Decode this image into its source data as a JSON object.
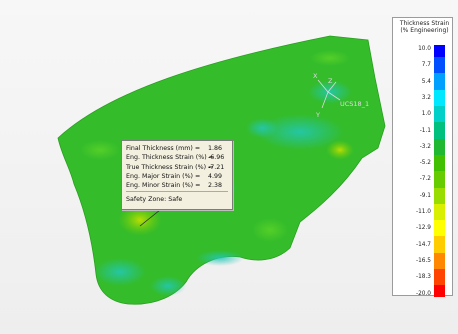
{
  "info_box": {
    "rows": [
      {
        "label": "Final Thickness (mm) =",
        "value": "1.86"
      },
      {
        "label": "Eng. Thickness Strain (%) =",
        "value": "-6.96"
      },
      {
        "label": "True Thickness Strain (%) =",
        "value": "-7.21"
      },
      {
        "label": "Eng. Major Strain (%) =",
        "value": "4.99"
      },
      {
        "label": "Eng. Minor Strain (%) =",
        "value": "2.38"
      }
    ],
    "safety_zone": "Safety Zone:  Safe"
  },
  "coordinate_system": {
    "name": "UCS18_1",
    "x_axis": "X",
    "y_axis": "Y",
    "z_axis": "Z"
  },
  "legend": {
    "title_line1": "Thickness Strain",
    "title_line2": "(% Engineering)",
    "labels": [
      "10.0",
      "7.7",
      "5.4",
      "3.2",
      "1.0",
      "-1.1",
      "-3.2",
      "-5.2",
      "-7.2",
      "-9.1",
      "-11.0",
      "-12.9",
      "-14.7",
      "-16.5",
      "-18.3",
      "-20.0"
    ],
    "colors": [
      "#0000ff",
      "#0050ff",
      "#00a0ff",
      "#00e8ff",
      "#00d0c8",
      "#00c080",
      "#20b830",
      "#40c000",
      "#66cc00",
      "#99dd00",
      "#d8f000",
      "#ffff00",
      "#ffcc00",
      "#ff8800",
      "#ff4400",
      "#ff0000"
    ]
  }
}
